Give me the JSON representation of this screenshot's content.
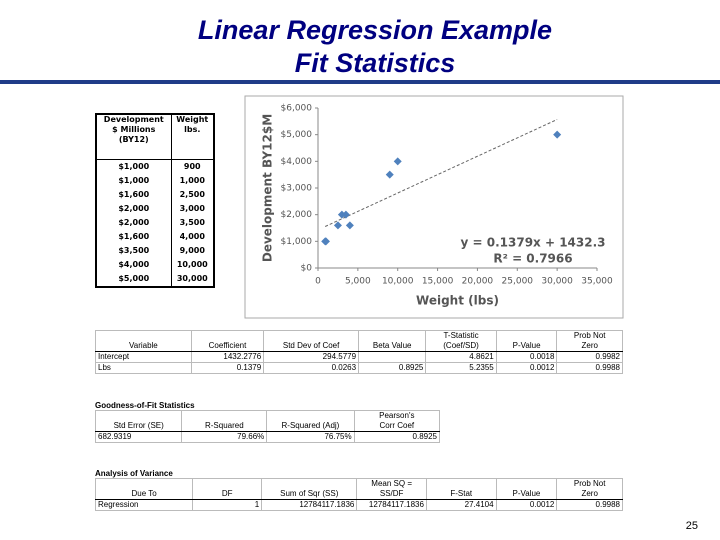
{
  "header": {
    "title_lines": [
      "Linear Regression Example",
      "Fit Statistics"
    ]
  },
  "data_table": {
    "headers": [
      [
        "Development",
        "$ Millions",
        "(BY12)"
      ],
      [
        "Weight",
        "lbs."
      ]
    ],
    "rows": [
      [
        "$1,000",
        "900"
      ],
      [
        "$1,000",
        "1,000"
      ],
      [
        "$1,600",
        "2,500"
      ],
      [
        "$2,000",
        "3,000"
      ],
      [
        "$2,000",
        "3,500"
      ],
      [
        "$1,600",
        "4,000"
      ],
      [
        "$3,500",
        "9,000"
      ],
      [
        "$4,000",
        "10,000"
      ],
      [
        "$5,000",
        "30,000"
      ]
    ]
  },
  "chart_data": {
    "type": "scatter",
    "x_label": "Weight (lbs)",
    "y_label": "Development BY12$M",
    "color": "#4f81bd",
    "x": [
      900,
      1000,
      2500,
      3000,
      3500,
      4000,
      9000,
      10000,
      30000
    ],
    "series": [
      {
        "name": "Development",
        "color": "#4f81bd",
        "values": [
          1000,
          1000,
          1600,
          2000,
          2000,
          1600,
          3500,
          4000,
          5000
        ]
      }
    ],
    "xlim": [
      0,
      35000
    ],
    "ylim": [
      0,
      6000
    ],
    "xticks": [
      0,
      {
        "value": 5000,
        "label": "5,000"
      },
      {
        "value": 10000,
        "label": "10,000"
      },
      {
        "value": 15000,
        "label": "15,000"
      },
      {
        "value": 20000,
        "label": "20,000"
      },
      {
        "value": 25000,
        "label": "25,000"
      },
      {
        "value": 30000,
        "label": "30,000"
      },
      {
        "value": 35000,
        "label": "35,000"
      }
    ],
    "yticks": [
      {
        "value": 0,
        "label": "$0"
      },
      {
        "value": 1000,
        "label": "$1,000"
      },
      {
        "value": 2000,
        "label": "$2,000"
      },
      {
        "value": 3000,
        "label": "$3,000"
      },
      {
        "value": 4000,
        "label": "$4,000"
      },
      {
        "value": 5000,
        "label": "$5,000"
      },
      {
        "value": 6000,
        "label": "$6,000"
      }
    ],
    "grid": false,
    "trendline": {
      "slope": 0.1379,
      "intercept": 1432.3,
      "equation": "y = 0.1379x + 1432.3",
      "r_squared_label": "R² = 0.7966"
    }
  },
  "coef_table": {
    "headers": [
      "Variable",
      "Coefficient",
      "Std Dev of Coef",
      "Beta Value",
      [
        "T-Statistic",
        "(Coef/SD)"
      ],
      "P-Value",
      [
        "Prob Not",
        "Zero"
      ]
    ],
    "rows": [
      [
        "Intercept",
        "1432.2776",
        "294.5779",
        null,
        "4.8621",
        "0.0018",
        "0.9982"
      ],
      [
        "Lbs",
        "0.1379",
        "0.0263",
        "0.8925",
        "5.2355",
        "0.0012",
        "0.9988"
      ]
    ]
  },
  "fit_table": {
    "title": "Goodness-of-Fit Statistics",
    "headers": [
      "Std Error (SE)",
      "R-Squared",
      "R-Squared (Adj)",
      [
        "Pearson's",
        "Corr Coef"
      ]
    ],
    "rows": [
      [
        "682.9319",
        "79.66%",
        "76.75%",
        "0.8925"
      ]
    ]
  },
  "anova_table": {
    "title": "Analysis of Variance",
    "headers": [
      "Due To",
      "DF",
      "Sum of Sqr (SS)",
      [
        "Mean SQ =",
        "SS/DF"
      ],
      "F-Stat",
      "P-Value",
      [
        "Prob Not",
        "Zero"
      ]
    ],
    "rows": [
      [
        "Regression",
        "1",
        "12784117.1836",
        "12784117.1836",
        "27.4104",
        "0.0012",
        "0.9988"
      ]
    ]
  },
  "footer": {
    "page_number": "25"
  }
}
